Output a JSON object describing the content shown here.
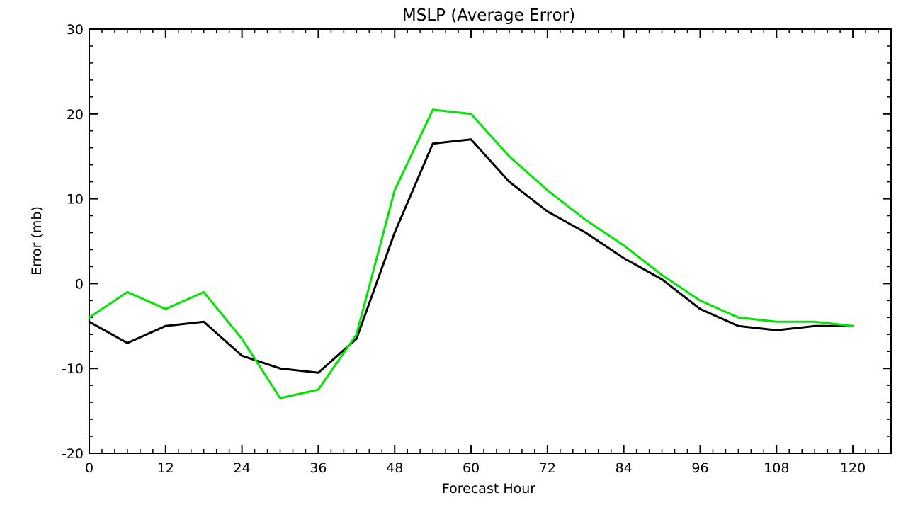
{
  "chart_data": {
    "type": "line",
    "title": "MSLP (Average Error)",
    "xlabel": "Forecast Hour",
    "ylabel": "Error (mb)",
    "xlim": [
      0,
      126
    ],
    "ylim": [
      -20,
      30
    ],
    "xticks": [
      0,
      12,
      24,
      36,
      48,
      60,
      72,
      84,
      96,
      108,
      120
    ],
    "yticks": [
      -20,
      -10,
      0,
      10,
      20,
      30
    ],
    "grid": false,
    "x": [
      0,
      6,
      12,
      18,
      24,
      30,
      36,
      42,
      48,
      54,
      60,
      66,
      72,
      78,
      84,
      90,
      96,
      102,
      108,
      114,
      120
    ],
    "series": [
      {
        "color": "#000000",
        "values": [
          -4.5,
          -7,
          -5,
          -4.5,
          -8.5,
          -10,
          -10.5,
          -6.5,
          6,
          16.5,
          17,
          12,
          8.5,
          6,
          3,
          0.5,
          -3,
          -5,
          -5.5,
          -5,
          -5
        ]
      },
      {
        "color": "#00e600",
        "values": [
          -4,
          -1,
          -3,
          -1,
          -6.5,
          -13.5,
          -12.5,
          -6,
          11,
          20.5,
          20,
          15,
          11,
          7.5,
          4.5,
          1,
          -2,
          -4,
          -4.5,
          -4.5,
          -5
        ]
      }
    ]
  }
}
